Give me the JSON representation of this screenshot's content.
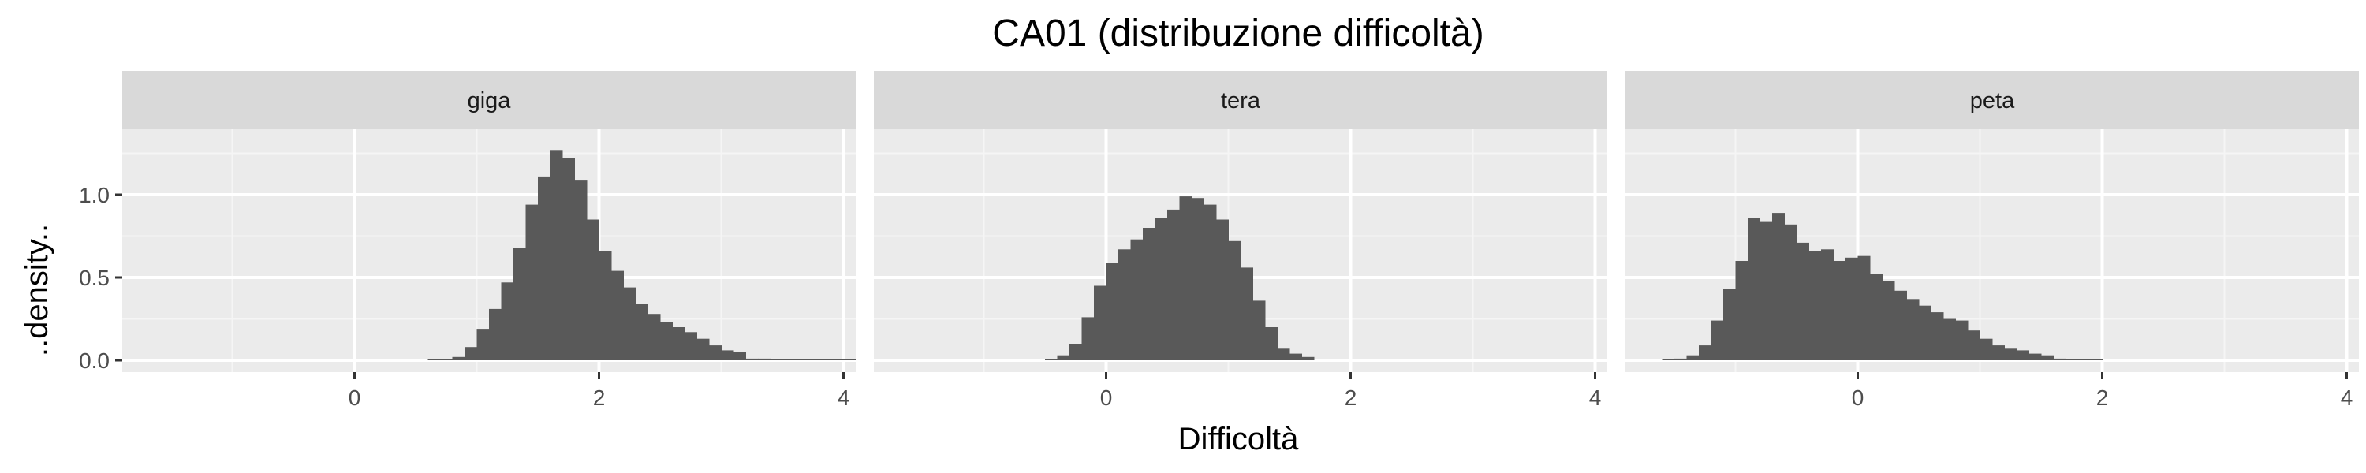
{
  "title": "CA01 (distribuzione difficoltà)",
  "chart_data": {
    "type": "bar",
    "title": "CA01 (distribuzione difficoltà)",
    "xlabel": "Difficoltà",
    "ylabel": "..density..",
    "xlim": [
      -1.9,
      4.1
    ],
    "ylim": [
      0,
      1.3
    ],
    "x_ticks": [
      0,
      2,
      4
    ],
    "y_ticks": [
      0.0,
      0.5,
      1.0
    ],
    "x_tick_labels": [
      "0",
      "2",
      "4"
    ],
    "y_tick_labels": [
      "0.0",
      "0.5",
      "1.0"
    ],
    "grid": true,
    "bin_width": 0.1,
    "bar_color": "#595959",
    "panel_background": "#ebebeb",
    "strip_background": "#d9d9d9",
    "panels": [
      {
        "name": "giga",
        "x_start": 0.6,
        "values": [
          0.005,
          0.005,
          0.02,
          0.08,
          0.19,
          0.31,
          0.47,
          0.68,
          0.94,
          1.11,
          1.27,
          1.22,
          1.09,
          0.85,
          0.66,
          0.54,
          0.44,
          0.34,
          0.28,
          0.23,
          0.2,
          0.17,
          0.13,
          0.09,
          0.06,
          0.05,
          0.01,
          0.01,
          0.005,
          0.005,
          0.005,
          0.005,
          0.005,
          0.005,
          0.005
        ]
      },
      {
        "name": "tera",
        "x_start": -0.5,
        "values": [
          0.005,
          0.03,
          0.1,
          0.26,
          0.45,
          0.59,
          0.67,
          0.73,
          0.8,
          0.86,
          0.91,
          0.99,
          0.98,
          0.94,
          0.85,
          0.72,
          0.56,
          0.36,
          0.2,
          0.07,
          0.04,
          0.02
        ]
      },
      {
        "name": "peta",
        "x_start": -1.6,
        "values": [
          0.005,
          0.01,
          0.03,
          0.09,
          0.24,
          0.43,
          0.6,
          0.86,
          0.84,
          0.89,
          0.82,
          0.71,
          0.66,
          0.67,
          0.6,
          0.62,
          0.63,
          0.52,
          0.48,
          0.42,
          0.37,
          0.33,
          0.29,
          0.25,
          0.24,
          0.18,
          0.13,
          0.09,
          0.07,
          0.06,
          0.04,
          0.03,
          0.01,
          0.005,
          0.005,
          0.005
        ]
      }
    ]
  }
}
